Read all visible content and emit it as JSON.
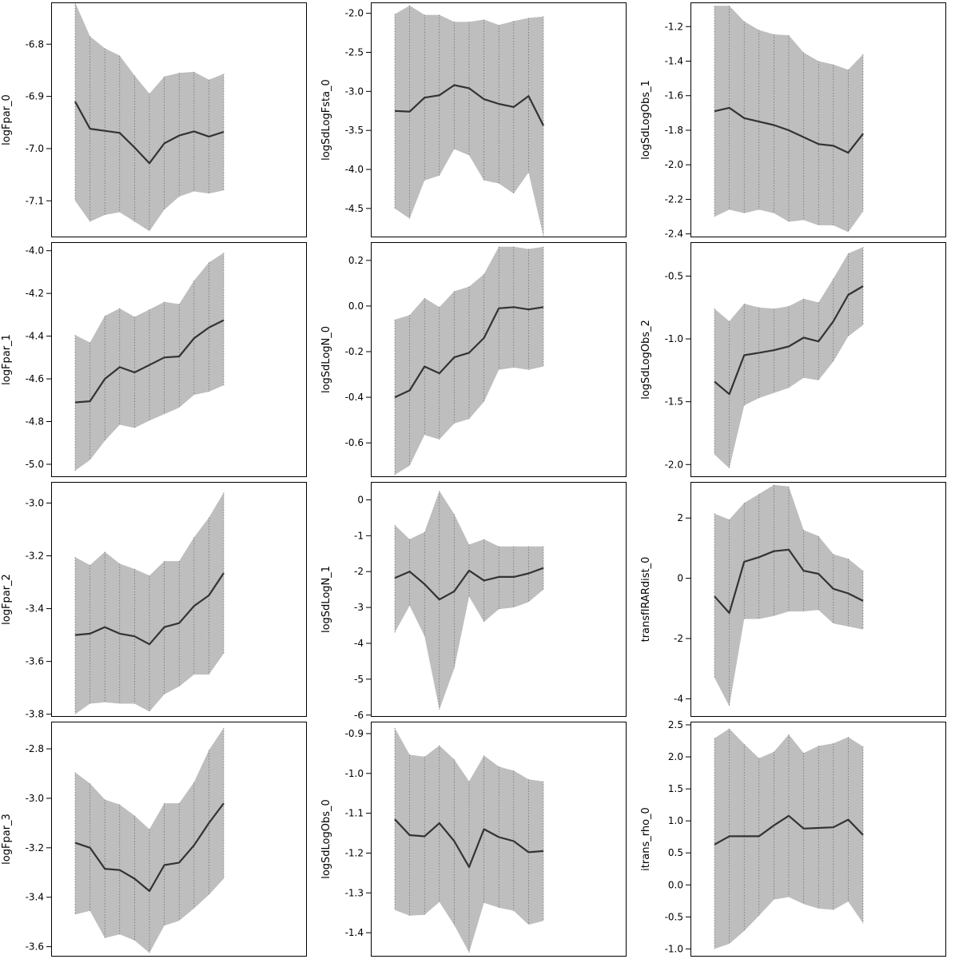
{
  "chart_data": [
    {
      "type": "area",
      "ylabel": "logFpar_0",
      "ylim": [
        -7.17,
        -6.72
      ],
      "yticks": [
        "-7.1",
        "-7.0",
        "-6.9",
        "-6.8"
      ],
      "mean": [
        -6.91,
        -6.962,
        -6.966,
        -6.97,
        -6.998,
        -7.028,
        -6.99,
        -6.975,
        -6.967,
        -6.977,
        -6.968
      ],
      "lower": [
        -7.1,
        -7.14,
        -7.127,
        -7.122,
        -7.14,
        -7.158,
        -7.117,
        -7.092,
        -7.082,
        -7.086,
        -7.08
      ],
      "upper": [
        -6.72,
        -6.785,
        -6.808,
        -6.822,
        -6.86,
        -6.895,
        -6.862,
        -6.855,
        -6.853,
        -6.868,
        -6.857
      ]
    },
    {
      "type": "area",
      "ylabel": "logSdLogFsta_0",
      "ylim": [
        -4.87,
        -1.86
      ],
      "yticks": [
        "-4.5",
        "-4.0",
        "-3.5",
        "-3.0",
        "-2.5",
        "-2.0"
      ],
      "mean": [
        -3.25,
        -3.26,
        -3.08,
        -3.05,
        -2.92,
        -2.96,
        -3.1,
        -3.16,
        -3.2,
        -3.06,
        -3.44
      ],
      "lower": [
        -4.5,
        -4.63,
        -4.14,
        -4.08,
        -3.74,
        -3.82,
        -4.14,
        -4.18,
        -4.31,
        -4.04,
        -4.86
      ],
      "upper": [
        -2.01,
        -1.9,
        -2.02,
        -2.02,
        -2.11,
        -2.11,
        -2.08,
        -2.15,
        -2.1,
        -2.06,
        -2.04
      ]
    },
    {
      "type": "area",
      "ylabel": "logSdLogObs_1",
      "ylim": [
        -2.42,
        -1.06
      ],
      "yticks": [
        "-2.4",
        "-2.2",
        "-2.0",
        "-1.8",
        "-1.6",
        "-1.4",
        "-1.2"
      ],
      "mean": [
        -1.69,
        -1.67,
        -1.73,
        -1.75,
        -1.77,
        -1.8,
        -1.84,
        -1.88,
        -1.89,
        -1.93,
        -1.82
      ],
      "lower": [
        -2.3,
        -2.26,
        -2.28,
        -2.26,
        -2.28,
        -2.33,
        -2.32,
        -2.35,
        -2.35,
        -2.39,
        -2.27
      ],
      "upper": [
        -1.08,
        -1.08,
        -1.17,
        -1.22,
        -1.245,
        -1.25,
        -1.35,
        -1.4,
        -1.42,
        -1.45,
        -1.36
      ]
    },
    {
      "type": "area",
      "ylabel": "logFpar_1",
      "ylim": [
        -5.06,
        -3.96
      ],
      "yticks": [
        "-5.0",
        "-4.8",
        "-4.6",
        "-4.4",
        "-4.2",
        "-4.0"
      ],
      "mean": [
        -4.71,
        -4.705,
        -4.6,
        -4.545,
        -4.57,
        -4.535,
        -4.5,
        -4.495,
        -4.41,
        -4.36,
        -4.325
      ],
      "lower": [
        -5.03,
        -4.98,
        -4.89,
        -4.815,
        -4.83,
        -4.795,
        -4.765,
        -4.735,
        -4.675,
        -4.66,
        -4.63
      ],
      "upper": [
        -4.395,
        -4.43,
        -4.305,
        -4.27,
        -4.31,
        -4.275,
        -4.24,
        -4.25,
        -4.14,
        -4.055,
        -4.01
      ]
    },
    {
      "type": "area",
      "ylabel": "logSdLogN_0",
      "ylim": [
        -0.75,
        0.28
      ],
      "yticks": [
        "-0.6",
        "-0.4",
        "-0.2",
        "0.0",
        "0.2"
      ],
      "mean": [
        -0.4,
        -0.37,
        -0.265,
        -0.295,
        -0.225,
        -0.205,
        -0.14,
        -0.01,
        -0.005,
        -0.015,
        -0.005
      ],
      "lower": [
        -0.74,
        -0.7,
        -0.565,
        -0.585,
        -0.515,
        -0.495,
        -0.42,
        -0.28,
        -0.27,
        -0.28,
        -0.265
      ],
      "upper": [
        -0.06,
        -0.04,
        0.035,
        -0.005,
        0.065,
        0.085,
        0.14,
        0.26,
        0.26,
        0.25,
        0.26
      ]
    },
    {
      "type": "area",
      "ylabel": "logSdLogObs_2",
      "ylim": [
        -2.1,
        -0.23
      ],
      "yticks": [
        "-2.0",
        "-1.5",
        "-1.0",
        "-0.5"
      ],
      "mean": [
        -1.34,
        -1.44,
        -1.13,
        -1.11,
        -1.09,
        -1.06,
        -0.99,
        -1.02,
        -0.86,
        -0.65,
        -0.58
      ],
      "lower": [
        -1.92,
        -2.03,
        -1.53,
        -1.47,
        -1.43,
        -1.39,
        -1.31,
        -1.33,
        -1.18,
        -0.98,
        -0.89
      ],
      "upper": [
        -0.76,
        -0.86,
        -0.72,
        -0.75,
        -0.76,
        -0.74,
        -0.68,
        -0.71,
        -0.52,
        -0.32,
        -0.27
      ]
    },
    {
      "type": "area",
      "ylabel": "logFpar_2",
      "ylim": [
        -3.81,
        -2.92
      ],
      "yticks": [
        "-3.8",
        "-3.6",
        "-3.4",
        "-3.2",
        "-3.0"
      ],
      "mean": [
        -3.5,
        -3.495,
        -3.47,
        -3.495,
        -3.505,
        -3.535,
        -3.47,
        -3.455,
        -3.39,
        -3.35,
        -3.265
      ],
      "lower": [
        -3.8,
        -3.76,
        -3.755,
        -3.76,
        -3.76,
        -3.79,
        -3.725,
        -3.695,
        -3.65,
        -3.65,
        -3.57
      ],
      "upper": [
        -3.205,
        -3.235,
        -3.185,
        -3.23,
        -3.25,
        -3.275,
        -3.22,
        -3.22,
        -3.13,
        -3.055,
        -2.96
      ]
    },
    {
      "type": "area",
      "ylabel": "logSdLogN_1",
      "ylim": [
        -6.05,
        0.5
      ],
      "yticks": [
        "-6",
        "-5",
        "-4",
        "-3",
        "-2",
        "-1",
        "0"
      ],
      "mean": [
        -2.18,
        -2.0,
        -2.35,
        -2.78,
        -2.55,
        -1.97,
        -2.25,
        -2.15,
        -2.15,
        -2.05,
        -1.9
      ],
      "lower": [
        -3.7,
        -2.95,
        -3.8,
        -5.85,
        -4.7,
        -2.7,
        -3.4,
        -3.05,
        -3.0,
        -2.85,
        -2.5
      ],
      "upper": [
        -0.7,
        -1.1,
        -0.9,
        0.25,
        -0.4,
        -1.25,
        -1.1,
        -1.3,
        -1.3,
        -1.3,
        -1.3
      ]
    },
    {
      "type": "area",
      "ylabel": "transfIRARdist_0",
      "ylim": [
        -4.6,
        3.2
      ],
      "yticks": [
        "-4",
        "-2",
        "0",
        "2"
      ],
      "mean": [
        -0.6,
        -1.15,
        0.55,
        0.7,
        0.9,
        0.95,
        0.25,
        0.15,
        -0.35,
        -0.5,
        -0.75
      ],
      "lower": [
        -3.3,
        -4.25,
        -1.35,
        -1.35,
        -1.25,
        -1.1,
        -1.1,
        -1.05,
        -1.5,
        -1.6,
        -1.7
      ],
      "upper": [
        2.15,
        1.95,
        2.5,
        2.8,
        3.1,
        3.05,
        1.6,
        1.4,
        0.8,
        0.65,
        0.25
      ]
    },
    {
      "type": "area",
      "ylabel": "logFpar_3",
      "ylim": [
        -3.64,
        -2.69
      ],
      "yticks": [
        "-3.6",
        "-3.4",
        "-3.2",
        "-3.0",
        "-2.8"
      ],
      "mean": [
        -3.18,
        -3.2,
        -3.285,
        -3.29,
        -3.325,
        -3.375,
        -3.27,
        -3.26,
        -3.19,
        -3.1,
        -3.02
      ],
      "lower": [
        -3.47,
        -3.455,
        -3.565,
        -3.55,
        -3.575,
        -3.625,
        -3.515,
        -3.495,
        -3.445,
        -3.39,
        -3.325
      ],
      "upper": [
        -2.895,
        -2.94,
        -3.005,
        -3.025,
        -3.07,
        -3.125,
        -3.02,
        -3.02,
        -2.935,
        -2.805,
        -2.715
      ]
    },
    {
      "type": "area",
      "ylabel": "logSdLogObs_0",
      "ylim": [
        -1.46,
        -0.87
      ],
      "yticks": [
        "-1.4",
        "-1.3",
        "-1.2",
        "-1.1",
        "-1.0",
        "-0.9"
      ],
      "mean": [
        -1.115,
        -1.155,
        -1.158,
        -1.125,
        -1.17,
        -1.235,
        -1.14,
        -1.16,
        -1.17,
        -1.198,
        -1.195
      ],
      "lower": [
        -1.343,
        -1.357,
        -1.355,
        -1.323,
        -1.381,
        -1.45,
        -1.325,
        -1.337,
        -1.345,
        -1.38,
        -1.37
      ],
      "upper": [
        -0.886,
        -0.953,
        -0.958,
        -0.93,
        -0.965,
        -1.02,
        -0.955,
        -0.983,
        -0.993,
        -1.015,
        -1.02
      ]
    },
    {
      "type": "area",
      "ylabel": "itrans_rho_0",
      "ylim": [
        -1.12,
        2.55
      ],
      "yticks": [
        "-1.0",
        "-0.5",
        "0.0",
        "0.5",
        "1.0",
        "1.5",
        "2.0",
        "2.5"
      ],
      "mean": [
        0.63,
        0.76,
        0.76,
        0.76,
        0.93,
        1.08,
        0.88,
        0.89,
        0.9,
        1.02,
        0.78
      ],
      "lower": [
        -1.0,
        -0.92,
        -0.72,
        -0.48,
        -0.23,
        -0.19,
        -0.3,
        -0.37,
        -0.39,
        -0.26,
        -0.6
      ],
      "upper": [
        2.29,
        2.44,
        2.2,
        1.98,
        2.08,
        2.35,
        2.06,
        2.17,
        2.21,
        2.31,
        2.16
      ]
    }
  ]
}
